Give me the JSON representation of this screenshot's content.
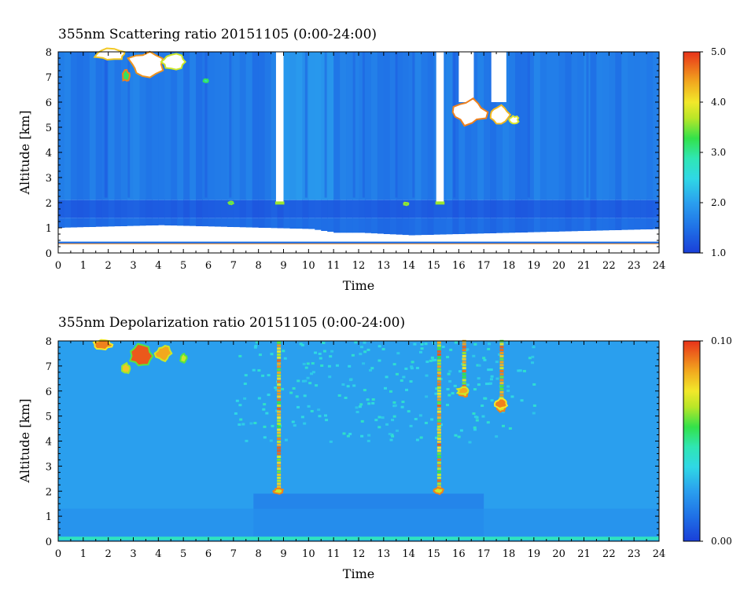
{
  "chart_data": [
    {
      "type": "heatmap",
      "title": "355nm Scattering ratio  20151105 (0:00-24:00)",
      "xlabel": "Time",
      "ylabel": "Altitude [km]",
      "xlim": [
        0,
        24
      ],
      "ylim": [
        0,
        8
      ],
      "x_ticks": [
        "0",
        "1",
        "2",
        "3",
        "4",
        "5",
        "6",
        "7",
        "8",
        "9",
        "10",
        "11",
        "12",
        "13",
        "14",
        "15",
        "16",
        "17",
        "18",
        "19",
        "20",
        "21",
        "22",
        "23",
        "24"
      ],
      "y_ticks": [
        "0",
        "1",
        "2",
        "3",
        "4",
        "5",
        "6",
        "7",
        "8"
      ],
      "colorbar": {
        "min": 1.0,
        "max": 5.0,
        "ticks": [
          "1.0",
          "2.0",
          "3.0",
          "4.0",
          "5.0"
        ],
        "tick_values": [
          1.0,
          2.0,
          3.0,
          4.0,
          5.0
        ]
      },
      "features": {
        "background_value": 1.6,
        "boundary_layer_top_km": [
          [
            0,
            1.0
          ],
          [
            2,
            1.05
          ],
          [
            4,
            1.1
          ],
          [
            6,
            1.05
          ],
          [
            8,
            1.0
          ],
          [
            10,
            0.95
          ],
          [
            11,
            0.8
          ],
          [
            12,
            0.8
          ],
          [
            14,
            0.7
          ],
          [
            16,
            0.75
          ],
          [
            18,
            0.8
          ],
          [
            20,
            0.85
          ],
          [
            22,
            0.9
          ],
          [
            24,
            0.95
          ]
        ],
        "ground_layer_km": [
          0.35,
          0.45
        ],
        "aerosol_layer_km": [
          1.4,
          2.1
        ],
        "missing_intervals_hr": [
          [
            8.7,
            9.0
          ],
          [
            15.1,
            15.4
          ],
          [
            16.0,
            16.6
          ],
          [
            17.3,
            17.9
          ]
        ],
        "clouds": [
          {
            "t0": 1.4,
            "t1": 5.0,
            "z0": 6.9,
            "z1": 8.0
          },
          {
            "t0": 15.8,
            "t1": 18.4,
            "z0": 4.9,
            "z1": 6.1
          }
        ]
      }
    },
    {
      "type": "heatmap",
      "title": "355nm Depolarization ratio  20151105 (0:00-24:00)",
      "xlabel": "Time",
      "ylabel": "Altitude [km]",
      "xlim": [
        0,
        24
      ],
      "ylim": [
        0,
        8
      ],
      "x_ticks": [
        "0",
        "1",
        "2",
        "3",
        "4",
        "5",
        "6",
        "7",
        "8",
        "9",
        "10",
        "11",
        "12",
        "13",
        "14",
        "15",
        "16",
        "17",
        "18",
        "19",
        "20",
        "21",
        "22",
        "23",
        "24"
      ],
      "y_ticks": [
        "0",
        "1",
        "2",
        "3",
        "4",
        "5",
        "6",
        "7",
        "8"
      ],
      "colorbar": {
        "min": 0.0,
        "max": 0.1,
        "ticks": [
          "0.00",
          "0.10"
        ],
        "tick_values": [
          0.0,
          0.1
        ]
      },
      "features": {
        "background_value": 0.025,
        "lower_layer_value": 0.018,
        "lower_layer_km": [
          0.2,
          1.9
        ],
        "ground_line_value": 0.045,
        "precipitation_streaks_hr": [
          8.8,
          15.2,
          16.2,
          17.7
        ],
        "clouds": [
          {
            "t0": 1.4,
            "t1": 5.2,
            "z0": 6.6,
            "z1": 8.0
          },
          {
            "t0": 15.9,
            "t1": 17.9,
            "z0": 5.2,
            "z1": 6.2
          }
        ]
      }
    }
  ]
}
